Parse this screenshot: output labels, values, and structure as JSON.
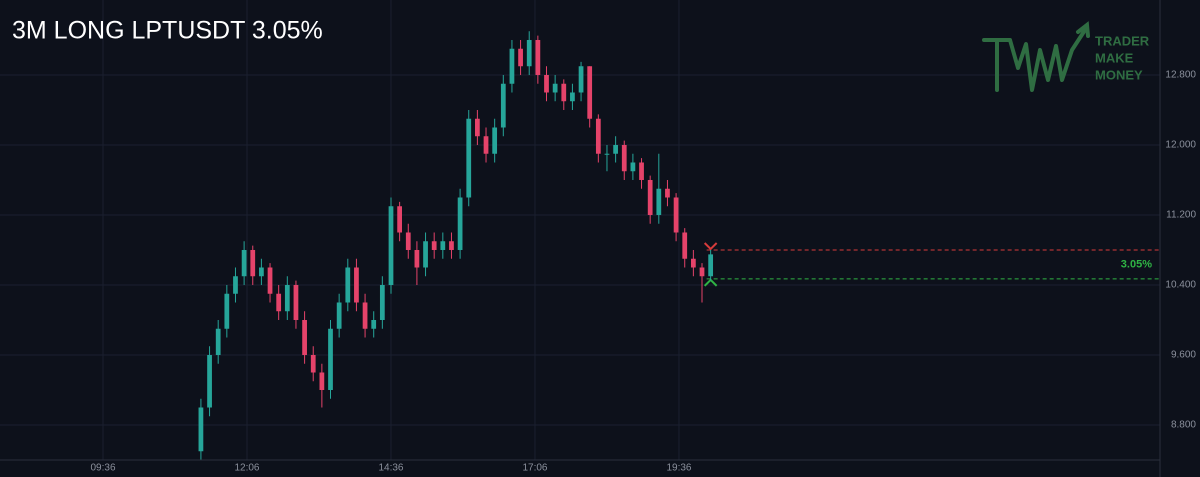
{
  "chart_data": {
    "type": "candlestick",
    "title": "3M LONG LPTUSDT 3.05%",
    "watermark": [
      "TRADER",
      "MAKE",
      "MONEY"
    ],
    "up_color": "#26a69a",
    "down_color": "#e5436a",
    "grid": true,
    "xlim": [
      468.7,
      1677.1
    ],
    "ylim": [
      8.4,
      13.657
    ],
    "xticks": [
      {
        "value": 576,
        "label": "09:36"
      },
      {
        "value": 726,
        "label": "12:06"
      },
      {
        "value": 876,
        "label": "14:36"
      },
      {
        "value": 1026,
        "label": "17:06"
      },
      {
        "value": 1176,
        "label": "19:36"
      }
    ],
    "yticks": [
      {
        "value": 8.8,
        "label": "8.800"
      },
      {
        "value": 9.6,
        "label": "9.600"
      },
      {
        "value": 10.4,
        "label": "10.400"
      },
      {
        "value": 11.2,
        "label": "11.200"
      },
      {
        "value": 12.0,
        "label": "12.000"
      },
      {
        "value": 12.8,
        "label": "12.800"
      }
    ],
    "x": [
      678,
      687,
      696,
      705,
      714,
      723,
      732,
      741,
      750,
      759,
      768,
      777,
      786,
      795,
      804,
      813,
      822,
      831,
      840,
      849,
      858,
      867,
      876,
      885,
      894,
      903,
      912,
      921,
      930,
      939,
      948,
      957,
      966,
      975,
      984,
      993,
      1002,
      1011,
      1020,
      1029,
      1038,
      1047,
      1056,
      1065,
      1074,
      1083,
      1092,
      1101,
      1110,
      1119,
      1128,
      1137,
      1146,
      1155,
      1164,
      1173,
      1182,
      1191,
      1200,
      1209
    ],
    "open": [
      8.5,
      9.0,
      9.6,
      9.9,
      10.3,
      10.5,
      10.8,
      10.5,
      10.6,
      10.3,
      10.1,
      10.4,
      10.0,
      9.6,
      9.4,
      9.2,
      9.9,
      10.2,
      10.6,
      10.2,
      9.9,
      10.0,
      10.4,
      11.3,
      11.0,
      10.8,
      10.6,
      10.9,
      10.8,
      10.9,
      10.8,
      11.4,
      12.3,
      12.1,
      11.9,
      12.2,
      12.7,
      13.1,
      12.9,
      13.2,
      12.8,
      12.6,
      12.7,
      12.5,
      12.6,
      12.9,
      12.3,
      11.9,
      11.9,
      12.0,
      11.7,
      11.8,
      11.6,
      11.2,
      11.5,
      11.4,
      11.0,
      10.7,
      10.6,
      10.5
    ],
    "high": [
      9.1,
      9.7,
      10.0,
      10.4,
      10.6,
      10.9,
      10.85,
      10.7,
      10.65,
      10.4,
      10.5,
      10.45,
      10.1,
      9.7,
      9.5,
      10.0,
      10.3,
      10.7,
      10.7,
      10.3,
      10.1,
      10.5,
      11.4,
      11.35,
      11.1,
      10.9,
      11.0,
      11.0,
      11.0,
      11.0,
      11.5,
      12.4,
      12.4,
      12.2,
      12.3,
      12.8,
      13.2,
      13.2,
      13.3,
      13.25,
      12.9,
      12.8,
      12.75,
      12.7,
      12.95,
      12.9,
      12.35,
      12.0,
      12.1,
      12.05,
      11.9,
      11.85,
      11.65,
      11.9,
      11.6,
      11.45,
      11.05,
      10.8,
      10.65,
      10.8
    ],
    "low": [
      8.4,
      8.9,
      9.5,
      9.8,
      10.2,
      10.4,
      10.4,
      10.4,
      10.2,
      10.0,
      10.0,
      9.9,
      9.5,
      9.3,
      9.0,
      9.1,
      9.8,
      10.1,
      10.1,
      9.8,
      9.8,
      9.9,
      10.3,
      10.9,
      10.7,
      10.4,
      10.5,
      10.7,
      10.7,
      10.7,
      10.7,
      11.3,
      12.0,
      11.8,
      11.8,
      12.1,
      12.6,
      12.8,
      12.8,
      12.7,
      12.5,
      12.5,
      12.4,
      12.4,
      12.5,
      12.2,
      11.8,
      11.7,
      11.8,
      11.6,
      11.6,
      11.5,
      11.1,
      11.1,
      11.3,
      10.9,
      10.6,
      10.5,
      10.2,
      10.45
    ],
    "close": [
      9.0,
      9.6,
      9.9,
      10.3,
      10.5,
      10.8,
      10.5,
      10.6,
      10.3,
      10.1,
      10.4,
      10.0,
      9.6,
      9.4,
      9.2,
      9.9,
      10.2,
      10.6,
      10.2,
      9.9,
      10.0,
      10.4,
      11.3,
      11.0,
      10.8,
      10.6,
      10.9,
      10.8,
      10.9,
      10.8,
      11.4,
      12.3,
      12.1,
      11.9,
      12.2,
      12.7,
      13.1,
      12.9,
      13.2,
      12.8,
      12.6,
      12.7,
      12.5,
      12.6,
      12.9,
      12.3,
      11.9,
      11.9,
      12.0,
      11.7,
      11.8,
      11.6,
      11.2,
      11.5,
      11.4,
      11.0,
      10.7,
      10.6,
      10.5,
      10.75
    ],
    "levels": [
      {
        "value": 10.8,
        "color": "#d63b3b"
      },
      {
        "value": 10.47,
        "color": "#2fb344"
      }
    ],
    "annotation": "3.05%"
  }
}
